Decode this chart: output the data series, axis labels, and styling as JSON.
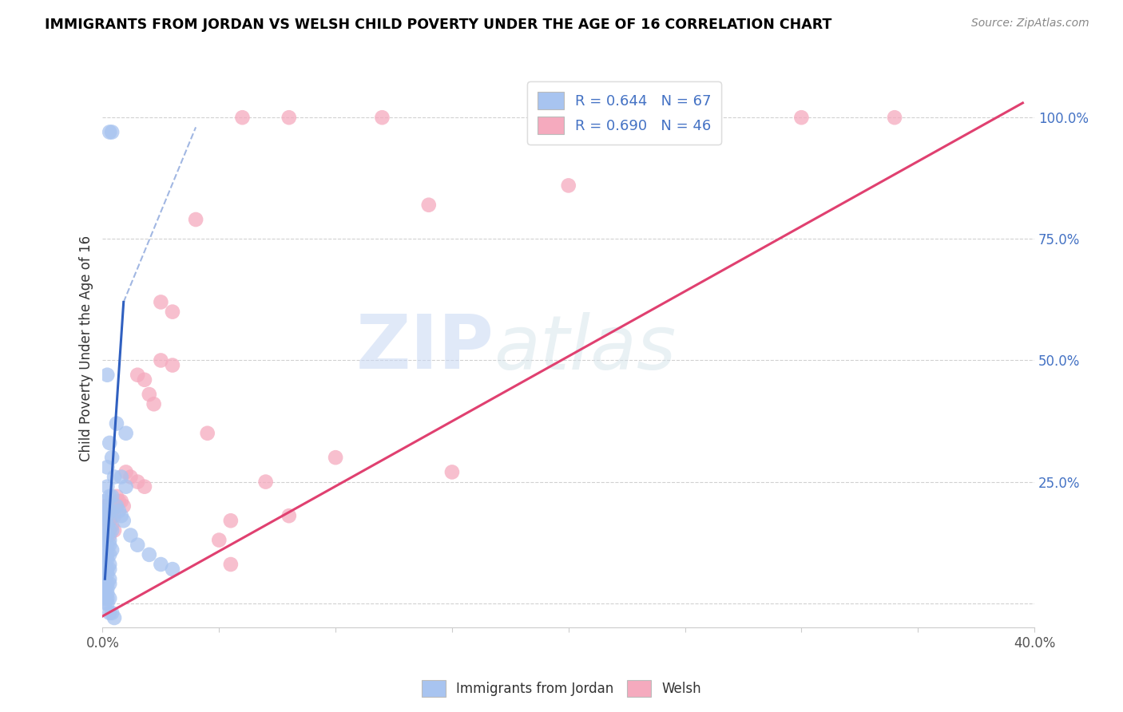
{
  "title": "IMMIGRANTS FROM JORDAN VS WELSH CHILD POVERTY UNDER THE AGE OF 16 CORRELATION CHART",
  "source": "Source: ZipAtlas.com",
  "ylabel": "Child Poverty Under the Age of 16",
  "xlim": [
    0.0,
    0.4
  ],
  "ylim": [
    -0.05,
    1.1
  ],
  "yticks": [
    0.0,
    0.25,
    0.5,
    0.75,
    1.0
  ],
  "ytick_labels": [
    "",
    "25.0%",
    "50.0%",
    "75.0%",
    "100.0%"
  ],
  "xticks": [
    0.0,
    0.05,
    0.1,
    0.15,
    0.2,
    0.25,
    0.3,
    0.35,
    0.4
  ],
  "xtick_labels": [
    "0.0%",
    "",
    "",
    "",
    "",
    "",
    "",
    "",
    "40.0%"
  ],
  "jordan_color": "#a8c4f0",
  "welsh_color": "#f5aabe",
  "jordan_line_color": "#3060c0",
  "welsh_line_color": "#e04070",
  "jordan_R": "0.644",
  "jordan_N": "67",
  "welsh_R": "0.690",
  "welsh_N": "46",
  "legend_label_jordan": "Immigrants from Jordan",
  "legend_label_welsh": "Welsh",
  "watermark_zip": "ZIP",
  "watermark_atlas": "atlas",
  "jordan_scatter": [
    [
      0.003,
      0.97
    ],
    [
      0.004,
      0.97
    ],
    [
      0.002,
      0.47
    ],
    [
      0.006,
      0.37
    ],
    [
      0.01,
      0.35
    ],
    [
      0.003,
      0.33
    ],
    [
      0.004,
      0.3
    ],
    [
      0.002,
      0.28
    ],
    [
      0.005,
      0.26
    ],
    [
      0.002,
      0.24
    ],
    [
      0.003,
      0.22
    ],
    [
      0.004,
      0.22
    ],
    [
      0.001,
      0.21
    ],
    [
      0.002,
      0.2
    ],
    [
      0.003,
      0.19
    ],
    [
      0.001,
      0.19
    ],
    [
      0.002,
      0.18
    ],
    [
      0.003,
      0.17
    ],
    [
      0.001,
      0.17
    ],
    [
      0.002,
      0.16
    ],
    [
      0.003,
      0.15
    ],
    [
      0.004,
      0.15
    ],
    [
      0.001,
      0.14
    ],
    [
      0.002,
      0.14
    ],
    [
      0.003,
      0.13
    ],
    [
      0.001,
      0.13
    ],
    [
      0.002,
      0.12
    ],
    [
      0.003,
      0.12
    ],
    [
      0.004,
      0.11
    ],
    [
      0.001,
      0.11
    ],
    [
      0.002,
      0.1
    ],
    [
      0.003,
      0.1
    ],
    [
      0.001,
      0.09
    ],
    [
      0.002,
      0.09
    ],
    [
      0.003,
      0.08
    ],
    [
      0.001,
      0.08
    ],
    [
      0.002,
      0.07
    ],
    [
      0.003,
      0.07
    ],
    [
      0.001,
      0.06
    ],
    [
      0.002,
      0.06
    ],
    [
      0.003,
      0.05
    ],
    [
      0.001,
      0.05
    ],
    [
      0.002,
      0.04
    ],
    [
      0.003,
      0.04
    ],
    [
      0.001,
      0.03
    ],
    [
      0.002,
      0.03
    ],
    [
      0.001,
      0.02
    ],
    [
      0.002,
      0.02
    ],
    [
      0.001,
      0.01
    ],
    [
      0.002,
      0.01
    ],
    [
      0.003,
      0.01
    ],
    [
      0.001,
      0.0
    ],
    [
      0.002,
      0.0
    ],
    [
      0.003,
      -0.02
    ],
    [
      0.004,
      -0.02
    ],
    [
      0.005,
      -0.03
    ],
    [
      0.006,
      0.2
    ],
    [
      0.007,
      0.19
    ],
    [
      0.008,
      0.18
    ],
    [
      0.009,
      0.17
    ],
    [
      0.012,
      0.14
    ],
    [
      0.015,
      0.12
    ],
    [
      0.02,
      0.1
    ],
    [
      0.025,
      0.08
    ],
    [
      0.03,
      0.07
    ],
    [
      0.008,
      0.26
    ],
    [
      0.01,
      0.24
    ]
  ],
  "welsh_scatter": [
    [
      0.001,
      0.2
    ],
    [
      0.002,
      0.2
    ],
    [
      0.003,
      0.19
    ],
    [
      0.004,
      0.19
    ],
    [
      0.005,
      0.18
    ],
    [
      0.001,
      0.18
    ],
    [
      0.002,
      0.17
    ],
    [
      0.003,
      0.17
    ],
    [
      0.004,
      0.16
    ],
    [
      0.005,
      0.15
    ],
    [
      0.001,
      0.15
    ],
    [
      0.002,
      0.14
    ],
    [
      0.003,
      0.14
    ],
    [
      0.006,
      0.22
    ],
    [
      0.007,
      0.21
    ],
    [
      0.008,
      0.21
    ],
    [
      0.009,
      0.2
    ],
    [
      0.01,
      0.27
    ],
    [
      0.012,
      0.26
    ],
    [
      0.015,
      0.25
    ],
    [
      0.018,
      0.24
    ],
    [
      0.02,
      0.43
    ],
    [
      0.022,
      0.41
    ],
    [
      0.025,
      0.5
    ],
    [
      0.03,
      0.49
    ],
    [
      0.015,
      0.47
    ],
    [
      0.018,
      0.46
    ],
    [
      0.025,
      0.62
    ],
    [
      0.03,
      0.6
    ],
    [
      0.04,
      0.79
    ],
    [
      0.045,
      0.35
    ],
    [
      0.06,
      1.0
    ],
    [
      0.08,
      1.0
    ],
    [
      0.12,
      1.0
    ],
    [
      0.14,
      0.82
    ],
    [
      0.2,
      0.86
    ],
    [
      0.26,
      1.0
    ],
    [
      0.3,
      1.0
    ],
    [
      0.34,
      1.0
    ],
    [
      0.05,
      0.13
    ],
    [
      0.07,
      0.25
    ],
    [
      0.1,
      0.3
    ],
    [
      0.15,
      0.27
    ],
    [
      0.055,
      0.17
    ],
    [
      0.08,
      0.18
    ],
    [
      0.055,
      0.08
    ]
  ],
  "jordan_solid_line": [
    [
      0.001,
      0.05
    ],
    [
      0.009,
      0.62
    ]
  ],
  "jordan_dashed_line": [
    [
      0.009,
      0.62
    ],
    [
      0.04,
      0.98
    ]
  ],
  "welsh_line": [
    [
      -0.005,
      -0.04
    ],
    [
      0.395,
      1.03
    ]
  ]
}
